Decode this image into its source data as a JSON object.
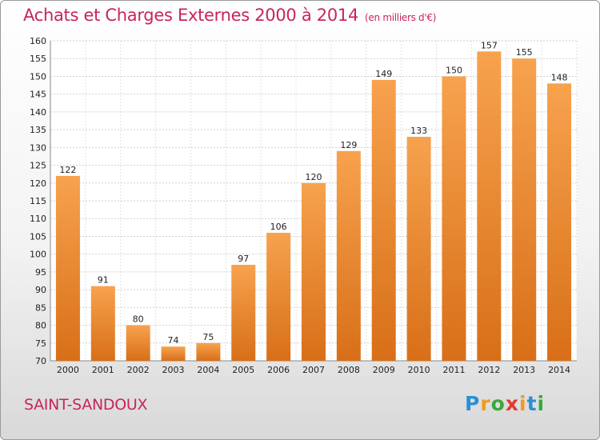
{
  "chart_data": {
    "type": "bar",
    "title": "Achats et Charges Externes 2000 à 2014",
    "subtitle": "(en milliers d'€)",
    "categories": [
      "2000",
      "2001",
      "2002",
      "2003",
      "2004",
      "2005",
      "2006",
      "2007",
      "2008",
      "2009",
      "2010",
      "2011",
      "2012",
      "2013",
      "2014"
    ],
    "values": [
      122,
      91,
      80,
      74,
      75,
      97,
      106,
      120,
      129,
      149,
      133,
      150,
      157,
      155,
      148
    ],
    "ylim": [
      70,
      160
    ],
    "yticks": [
      70,
      75,
      80,
      85,
      90,
      95,
      100,
      105,
      110,
      115,
      120,
      125,
      130,
      135,
      140,
      145,
      150,
      155,
      160
    ],
    "grid": true,
    "bar_color_top": "#f7a24e",
    "bar_color_bottom": "#d86f18",
    "legend": "none"
  },
  "footer": {
    "place": "SAINT-SANDOUX",
    "logo_letters": [
      {
        "ch": "P",
        "color": "#2a8fd6"
      },
      {
        "ch": "r",
        "color": "#f29a1f"
      },
      {
        "ch": "o",
        "color": "#3aa83f"
      },
      {
        "ch": "x",
        "color": "#e23a2e"
      },
      {
        "ch": "i",
        "color": "#f29a1f"
      },
      {
        "ch": "t",
        "color": "#2a8fd6"
      },
      {
        "ch": "i",
        "color": "#3aa83f"
      }
    ]
  }
}
